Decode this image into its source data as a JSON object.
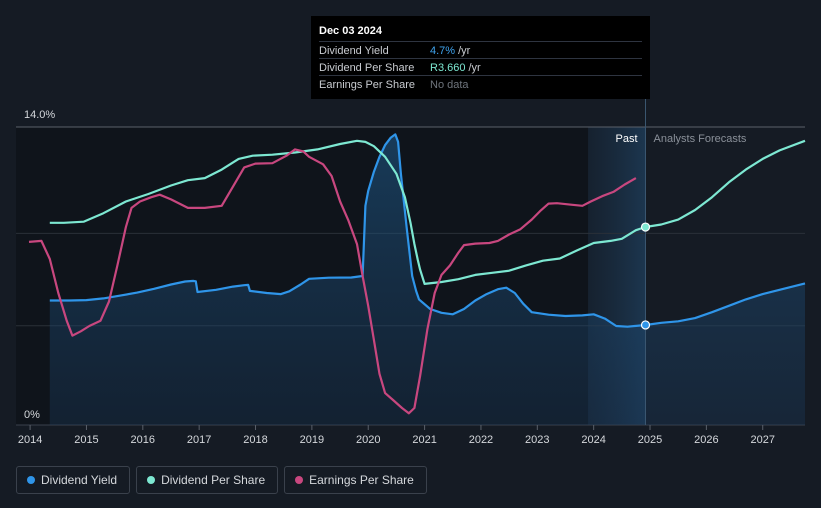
{
  "chart_data": {
    "type": "line",
    "y_axis": {
      "top_label": "14.0%",
      "bottom_label": "0%",
      "ylim": [
        0,
        14
      ]
    },
    "x_axis": {
      "xlim": [
        2013.75,
        2027.75
      ],
      "ticks": [
        {
          "value": 2014,
          "label": "2014"
        },
        {
          "value": 2015,
          "label": "2015"
        },
        {
          "value": 2016,
          "label": "2016"
        },
        {
          "value": 2017,
          "label": "2017"
        },
        {
          "value": 2018,
          "label": "2018"
        },
        {
          "value": 2019,
          "label": "2019"
        },
        {
          "value": 2020,
          "label": "2020"
        },
        {
          "value": 2021,
          "label": "2021"
        },
        {
          "value": 2022,
          "label": "2022"
        },
        {
          "value": 2023,
          "label": "2023"
        },
        {
          "value": 2024,
          "label": "2024"
        },
        {
          "value": 2025,
          "label": "2025"
        },
        {
          "value": 2026,
          "label": "2026"
        },
        {
          "value": 2027,
          "label": "2027"
        }
      ]
    },
    "past_label": "Past",
    "forecast_label": "Analysts Forecasts",
    "forecast_start": 2023.9,
    "current_date": 2024.92,
    "series": [
      {
        "name": "Dividend Per Share",
        "color": "#7de8d2",
        "points": [
          [
            2014.35,
            9.5
          ],
          [
            2014.6,
            9.5
          ],
          [
            2014.95,
            9.55
          ],
          [
            2015.3,
            9.95
          ],
          [
            2015.7,
            10.5
          ],
          [
            2016.1,
            10.85
          ],
          [
            2016.5,
            11.25
          ],
          [
            2016.8,
            11.5
          ],
          [
            2017.1,
            11.6
          ],
          [
            2017.4,
            12.0
          ],
          [
            2017.7,
            12.5
          ],
          [
            2017.95,
            12.65
          ],
          [
            2018.3,
            12.7
          ],
          [
            2018.7,
            12.8
          ],
          [
            2019.1,
            12.95
          ],
          [
            2019.5,
            13.2
          ],
          [
            2019.8,
            13.35
          ],
          [
            2019.95,
            13.3
          ],
          [
            2020.1,
            13.1
          ],
          [
            2020.3,
            12.6
          ],
          [
            2020.5,
            11.8
          ],
          [
            2020.65,
            10.7
          ],
          [
            2020.75,
            9.5
          ],
          [
            2020.82,
            8.5
          ],
          [
            2020.88,
            7.75
          ],
          [
            2020.92,
            7.3
          ],
          [
            2021.0,
            6.63
          ],
          [
            2021.3,
            6.72
          ],
          [
            2021.6,
            6.85
          ],
          [
            2021.9,
            7.05
          ],
          [
            2022.2,
            7.15
          ],
          [
            2022.5,
            7.25
          ],
          [
            2022.8,
            7.5
          ],
          [
            2023.1,
            7.72
          ],
          [
            2023.4,
            7.82
          ],
          [
            2023.7,
            8.2
          ],
          [
            2024.0,
            8.55
          ],
          [
            2024.3,
            8.65
          ],
          [
            2024.5,
            8.75
          ],
          [
            2024.75,
            9.15
          ],
          [
            2024.92,
            9.3
          ],
          [
            2025.2,
            9.42
          ],
          [
            2025.5,
            9.65
          ],
          [
            2025.8,
            10.1
          ],
          [
            2026.1,
            10.7
          ],
          [
            2026.4,
            11.4
          ],
          [
            2026.7,
            12.0
          ],
          [
            2027.0,
            12.5
          ],
          [
            2027.3,
            12.9
          ],
          [
            2027.75,
            13.35
          ]
        ]
      },
      {
        "name": "Dividend Yield",
        "color": "#2f95e9",
        "points": [
          [
            2014.35,
            5.85
          ],
          [
            2014.7,
            5.85
          ],
          [
            2015.0,
            5.87
          ],
          [
            2015.3,
            5.95
          ],
          [
            2015.6,
            6.08
          ],
          [
            2015.9,
            6.22
          ],
          [
            2016.2,
            6.4
          ],
          [
            2016.5,
            6.6
          ],
          [
            2016.75,
            6.74
          ],
          [
            2016.9,
            6.77
          ],
          [
            2016.94,
            6.75
          ],
          [
            2016.97,
            6.25
          ],
          [
            2017.3,
            6.35
          ],
          [
            2017.6,
            6.5
          ],
          [
            2017.8,
            6.57
          ],
          [
            2017.87,
            6.58
          ],
          [
            2017.9,
            6.3
          ],
          [
            2018.2,
            6.2
          ],
          [
            2018.45,
            6.15
          ],
          [
            2018.6,
            6.28
          ],
          [
            2018.8,
            6.6
          ],
          [
            2018.95,
            6.87
          ],
          [
            2019.3,
            6.92
          ],
          [
            2019.7,
            6.93
          ],
          [
            2019.9,
            7.0
          ],
          [
            2019.95,
            10.3
          ],
          [
            2020.0,
            11.0
          ],
          [
            2020.1,
            11.9
          ],
          [
            2020.2,
            12.6
          ],
          [
            2020.3,
            13.15
          ],
          [
            2020.4,
            13.5
          ],
          [
            2020.48,
            13.65
          ],
          [
            2020.53,
            13.3
          ],
          [
            2020.58,
            11.8
          ],
          [
            2020.68,
            9.3
          ],
          [
            2020.78,
            7.0
          ],
          [
            2020.85,
            6.3
          ],
          [
            2020.9,
            5.9
          ],
          [
            2021.1,
            5.45
          ],
          [
            2021.3,
            5.27
          ],
          [
            2021.5,
            5.2
          ],
          [
            2021.7,
            5.45
          ],
          [
            2021.9,
            5.85
          ],
          [
            2022.1,
            6.15
          ],
          [
            2022.3,
            6.38
          ],
          [
            2022.45,
            6.45
          ],
          [
            2022.6,
            6.2
          ],
          [
            2022.75,
            5.7
          ],
          [
            2022.9,
            5.3
          ],
          [
            2023.2,
            5.18
          ],
          [
            2023.5,
            5.12
          ],
          [
            2023.8,
            5.15
          ],
          [
            2024.0,
            5.2
          ],
          [
            2024.2,
            5.0
          ],
          [
            2024.4,
            4.65
          ],
          [
            2024.6,
            4.62
          ],
          [
            2024.92,
            4.7
          ],
          [
            2025.2,
            4.8
          ],
          [
            2025.5,
            4.87
          ],
          [
            2025.8,
            5.02
          ],
          [
            2026.1,
            5.3
          ],
          [
            2026.4,
            5.6
          ],
          [
            2026.7,
            5.9
          ],
          [
            2027.0,
            6.15
          ],
          [
            2027.3,
            6.35
          ],
          [
            2027.75,
            6.65
          ]
        ]
      },
      {
        "name": "Earnings Per Share",
        "color": "#c8477f",
        "points": [
          [
            2013.98,
            8.6
          ],
          [
            2014.2,
            8.65
          ],
          [
            2014.35,
            7.8
          ],
          [
            2014.5,
            6.2
          ],
          [
            2014.65,
            4.9
          ],
          [
            2014.75,
            4.2
          ],
          [
            2014.9,
            4.4
          ],
          [
            2015.05,
            4.65
          ],
          [
            2015.25,
            4.9
          ],
          [
            2015.4,
            5.8
          ],
          [
            2015.55,
            7.5
          ],
          [
            2015.7,
            9.3
          ],
          [
            2015.8,
            10.2
          ],
          [
            2015.95,
            10.5
          ],
          [
            2016.15,
            10.7
          ],
          [
            2016.3,
            10.82
          ],
          [
            2016.5,
            10.6
          ],
          [
            2016.8,
            10.2
          ],
          [
            2017.1,
            10.2
          ],
          [
            2017.4,
            10.3
          ],
          [
            2017.6,
            11.2
          ],
          [
            2017.8,
            12.1
          ],
          [
            2018.0,
            12.28
          ],
          [
            2018.3,
            12.3
          ],
          [
            2018.55,
            12.65
          ],
          [
            2018.7,
            12.95
          ],
          [
            2018.85,
            12.85
          ],
          [
            2018.95,
            12.6
          ],
          [
            2019.2,
            12.25
          ],
          [
            2019.35,
            11.7
          ],
          [
            2019.5,
            10.5
          ],
          [
            2019.65,
            9.6
          ],
          [
            2019.8,
            8.5
          ],
          [
            2019.9,
            7.0
          ],
          [
            2020.0,
            5.6
          ],
          [
            2020.1,
            4.0
          ],
          [
            2020.2,
            2.4
          ],
          [
            2020.3,
            1.5
          ],
          [
            2020.45,
            1.15
          ],
          [
            2020.6,
            0.8
          ],
          [
            2020.72,
            0.55
          ],
          [
            2020.82,
            0.8
          ],
          [
            2020.92,
            2.3
          ],
          [
            2021.05,
            4.5
          ],
          [
            2021.18,
            6.2
          ],
          [
            2021.3,
            7.05
          ],
          [
            2021.45,
            7.5
          ],
          [
            2021.6,
            8.1
          ],
          [
            2021.7,
            8.45
          ],
          [
            2021.9,
            8.52
          ],
          [
            2022.15,
            8.55
          ],
          [
            2022.3,
            8.65
          ],
          [
            2022.5,
            8.95
          ],
          [
            2022.7,
            9.2
          ],
          [
            2022.9,
            9.65
          ],
          [
            2023.05,
            10.05
          ],
          [
            2023.2,
            10.4
          ],
          [
            2023.35,
            10.42
          ],
          [
            2023.6,
            10.35
          ],
          [
            2023.8,
            10.3
          ],
          [
            2023.95,
            10.5
          ],
          [
            2024.15,
            10.75
          ],
          [
            2024.35,
            10.95
          ],
          [
            2024.55,
            11.3
          ],
          [
            2024.75,
            11.6
          ]
        ]
      }
    ],
    "tooltip": {
      "date": "Dec 03 2024",
      "rows": [
        {
          "label": "Dividend Yield",
          "value": "4.7%",
          "unit": "/yr"
        },
        {
          "label": "Dividend Per Share",
          "value": "R3.660",
          "unit": "/yr"
        },
        {
          "label": "Earnings Per Share",
          "value": "No data",
          "unit": ""
        }
      ]
    },
    "legend": [
      {
        "label": "Dividend Yield",
        "color": "#2f95e9"
      },
      {
        "label": "Dividend Per Share",
        "color": "#7de8d2"
      },
      {
        "label": "Earnings Per Share",
        "color": "#c8477f"
      }
    ]
  }
}
